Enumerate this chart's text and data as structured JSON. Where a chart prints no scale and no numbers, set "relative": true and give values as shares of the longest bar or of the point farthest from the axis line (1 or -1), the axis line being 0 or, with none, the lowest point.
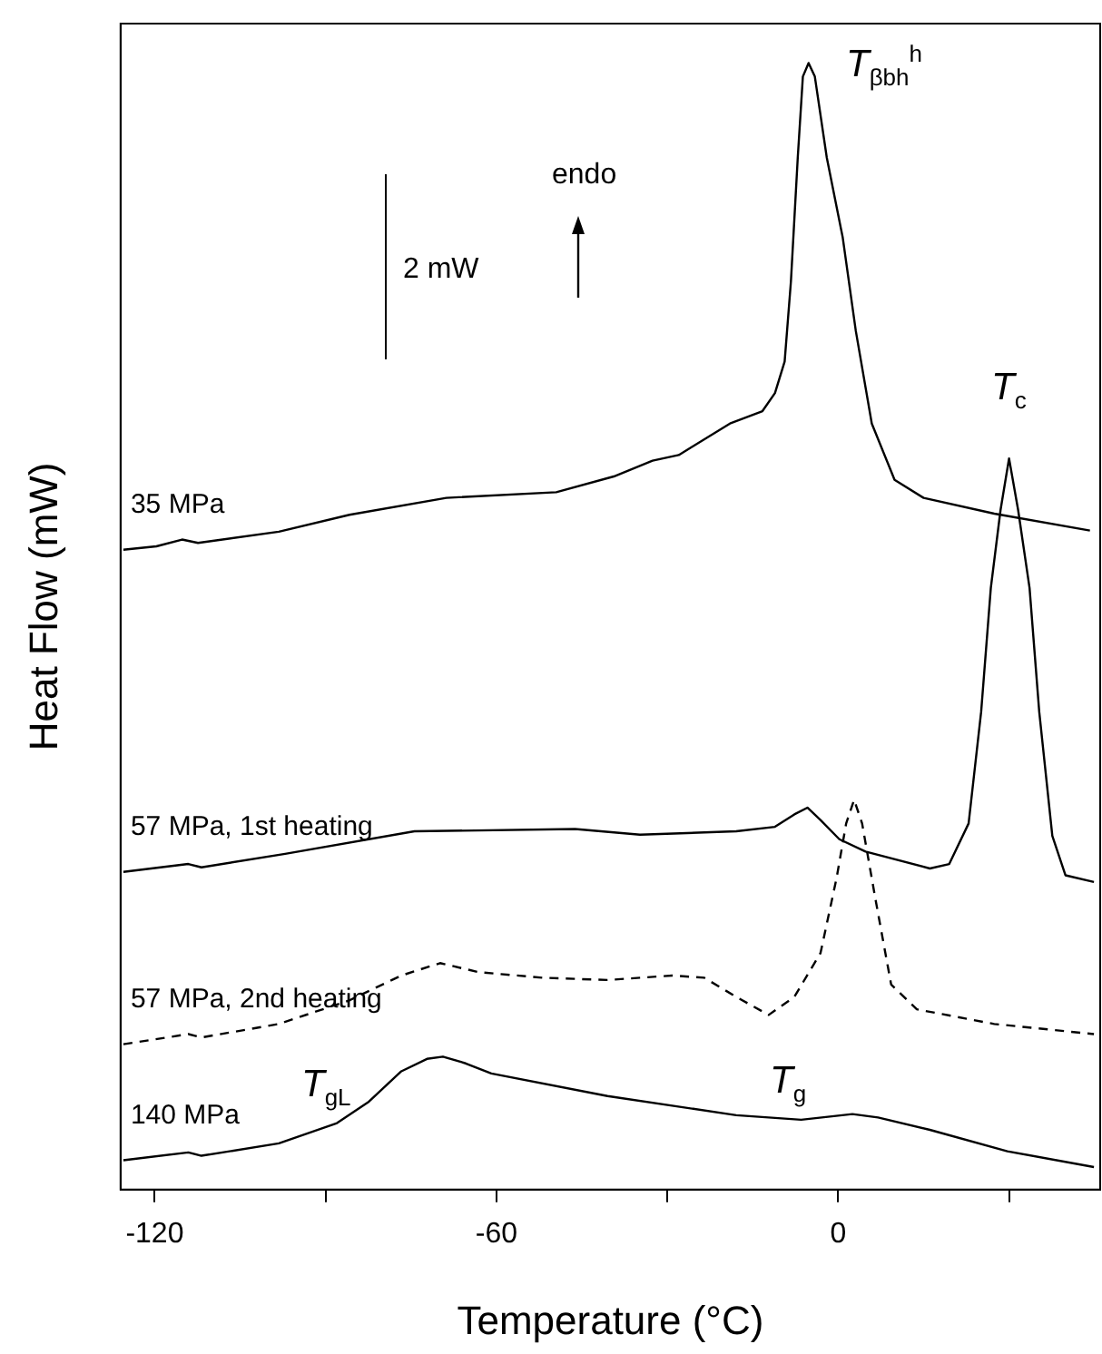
{
  "chart_data": {
    "type": "line",
    "relative": true,
    "xlabel": "Temperature (°C)",
    "ylabel": "Heat Flow (mW)",
    "xlim": [
      -126,
      46
    ],
    "xticks": [
      -120,
      {
        "value": -90,
        "label": null
      },
      -60,
      {
        "value": -30,
        "label": null
      },
      0,
      {
        "value": 30,
        "label": null
      }
    ],
    "tick_labels": "x",
    "grid": false,
    "legend": false,
    "marker": "none",
    "series": [
      {
        "name": "35 MPa",
        "color": "#000000",
        "line_style": "solid",
        "x": [
          -125.5,
          -119.7,
          -115.2,
          -112.4,
          -98.2,
          -85.8,
          -68.8,
          -49.5,
          -39.4,
          -32.6,
          -28.0,
          -19.0,
          -13.3,
          -11.1,
          -9.4,
          -8.3,
          -7.1,
          -6.2,
          -5.2,
          -4.1,
          -2.0,
          0.8,
          3.1,
          5.9,
          9.9,
          15.0,
          27.4,
          44.2
        ],
        "values": [
          0.568,
          0.571,
          0.577,
          0.574,
          0.584,
          0.599,
          0.614,
          0.619,
          0.633,
          0.647,
          0.652,
          0.68,
          0.691,
          0.707,
          0.735,
          0.806,
          0.916,
          0.988,
          1.0,
          0.988,
          0.916,
          0.845,
          0.762,
          0.68,
          0.63,
          0.614,
          0.6,
          0.585
        ]
      },
      {
        "name": "57 MPa, 1st heating",
        "color": "#000000",
        "line_style": "solid",
        "x": [
          -125.5,
          -114.1,
          -111.8,
          -97.1,
          -74.4,
          -46.2,
          -34.8,
          -17.9,
          -11.1,
          -7.7,
          -5.4,
          -3.1,
          0.2,
          4.8,
          16.1,
          19.5,
          22.9,
          25.1,
          26.8,
          28.5,
          30.0,
          31.6,
          33.6,
          35.3,
          37.6,
          39.9,
          44.9
        ],
        "values": [
          0.282,
          0.289,
          0.286,
          0.298,
          0.318,
          0.32,
          0.315,
          0.318,
          0.322,
          0.333,
          0.339,
          0.328,
          0.311,
          0.3,
          0.285,
          0.289,
          0.325,
          0.424,
          0.534,
          0.603,
          0.649,
          0.603,
          0.534,
          0.424,
          0.314,
          0.279,
          0.273
        ]
      },
      {
        "name": "57 MPa, 2nd heating",
        "color": "#000000",
        "line_style": "dashed",
        "x": [
          -125.5,
          -114.1,
          -111.8,
          -98.2,
          -85.8,
          -76.7,
          -69.9,
          -63.1,
          -51.8,
          -40.5,
          -29.2,
          -23.5,
          -17.9,
          -12.2,
          -7.7,
          -3.1,
          -0.3,
          1.4,
          2.8,
          4.2,
          6.5,
          9.3,
          13.8,
          27.4,
          44.9
        ],
        "values": [
          0.129,
          0.138,
          0.135,
          0.147,
          0.168,
          0.19,
          0.201,
          0.193,
          0.188,
          0.186,
          0.19,
          0.188,
          0.171,
          0.155,
          0.171,
          0.21,
          0.276,
          0.325,
          0.346,
          0.325,
          0.259,
          0.182,
          0.16,
          0.147,
          0.138
        ]
      },
      {
        "name": "140 MPa",
        "color": "#000000",
        "line_style": "solid",
        "x": [
          -125.5,
          -114.1,
          -111.8,
          -98.2,
          -88.0,
          -82.4,
          -76.7,
          -72.2,
          -69.4,
          -65.4,
          -60.9,
          -40.5,
          -17.9,
          -6.5,
          2.5,
          7.0,
          16.1,
          29.7,
          44.9
        ],
        "values": [
          0.026,
          0.033,
          0.03,
          0.041,
          0.059,
          0.078,
          0.105,
          0.116,
          0.118,
          0.112,
          0.103,
          0.083,
          0.066,
          0.062,
          0.067,
          0.064,
          0.053,
          0.034,
          0.02
        ]
      }
    ],
    "annotations": [
      "T$_{βbh}$$^{h}$",
      "T$_{c}$",
      "T$_{gL}$",
      "T$_{g}$",
      "2 mW",
      "endo"
    ]
  }
}
